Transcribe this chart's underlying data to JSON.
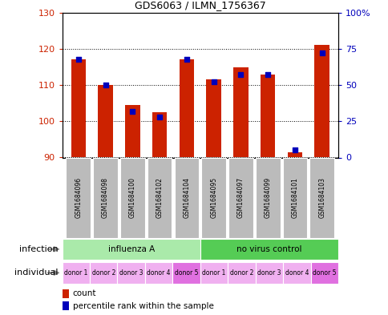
{
  "title": "GDS6063 / ILMN_1756367",
  "samples": [
    "GSM1684096",
    "GSM1684098",
    "GSM1684100",
    "GSM1684102",
    "GSM1684104",
    "GSM1684095",
    "GSM1684097",
    "GSM1684099",
    "GSM1684101",
    "GSM1684103"
  ],
  "counts": [
    117,
    110,
    104.5,
    102.5,
    117,
    111.5,
    115,
    113,
    91.5,
    121
  ],
  "percentiles": [
    68,
    50,
    32,
    28,
    68,
    52,
    57,
    57,
    5,
    72
  ],
  "ylim_left": [
    90,
    130
  ],
  "ylim_right": [
    0,
    100
  ],
  "yticks_left": [
    90,
    100,
    110,
    120,
    130
  ],
  "yticks_right": [
    0,
    25,
    50,
    75,
    100
  ],
  "yticklabels_right": [
    "0",
    "25",
    "50",
    "75",
    "100%"
  ],
  "infection_group1_label": "influenza A",
  "infection_group1_color": "#AAEAAA",
  "infection_group2_label": "no virus control",
  "infection_group2_color": "#55CC55",
  "individual_labels": [
    "donor 1",
    "donor 2",
    "donor 3",
    "donor 4",
    "donor 5",
    "donor 1",
    "donor 2",
    "donor 3",
    "donor 4",
    "donor 5"
  ],
  "individual_color_odd": "#F0B0F0",
  "individual_color_even": "#E070E0",
  "bar_color": "#CC2200",
  "dot_color": "#0000BB",
  "bar_bottom": 90,
  "bar_width": 0.55,
  "label_infection": "infection",
  "label_individual": "individual",
  "left_axis_color": "#CC2200",
  "right_axis_color": "#0000BB",
  "sample_label_bg": "#BBBBBB",
  "legend_count_color": "#CC2200",
  "legend_dot_color": "#0000BB"
}
